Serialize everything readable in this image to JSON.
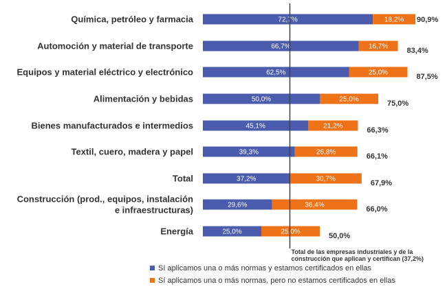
{
  "chart_data": {
    "type": "bar",
    "orientation": "horizontal",
    "stacked": true,
    "categories": [
      "Química, petróleo y farmacia",
      "Automoción y material de transporte",
      "Equipos y material eléctrico y electrónico",
      "Alimentación y bebidas",
      "Bienes manufacturados e intermedios",
      "Textil, cuero, madera y papel",
      "Total",
      "Construcción (prod., equipos, instalación e infraestructuras)",
      "Energía"
    ],
    "category_label_lines": [
      [
        "Química, petróleo y farmacia"
      ],
      [
        "Automoción y material de transporte"
      ],
      [
        "Equipos y material eléctrico y electrónico"
      ],
      [
        "Alimentación y bebidas"
      ],
      [
        "Bienes manufacturados e intermedios"
      ],
      [
        "Textil, cuero, madera y papel"
      ],
      [
        "Total"
      ],
      [
        "Construcción (prod., equipos, instalación",
        "e infraestructuras)"
      ],
      [
        "Energía"
      ]
    ],
    "series": [
      {
        "name": "Sí aplicamos una o más normas y estamos certificados en ellas",
        "color": "#4a5cab",
        "values": [
          72.7,
          66.7,
          62.5,
          50.0,
          45.1,
          39.3,
          37.2,
          29.6,
          25.0
        ],
        "labels": [
          "72,7%",
          "66,7%",
          "62,5%",
          "50,0%",
          "45,1%",
          "39,3%",
          "37,2%",
          "29,6%",
          "25,0%"
        ]
      },
      {
        "name": "Sí aplicamos una o más normas, pero no estamos certificados en ellas",
        "color": "#ee7217",
        "values": [
          18.2,
          16.7,
          25.0,
          25.0,
          21.2,
          26.8,
          30.7,
          36.4,
          25.0
        ],
        "labels": [
          "18,2%",
          "16,7%",
          "25,0%",
          "25,0%",
          "21,2%",
          "26,8%",
          "30,7%",
          "36,4%",
          "25,0%"
        ]
      }
    ],
    "totals": [
      "90,9%",
      "83,4%",
      "87,5%",
      "75,0%",
      "66,3%",
      "66,1%",
      "67,9%",
      "66,0%",
      "50,0%"
    ],
    "totals_values": [
      90.9,
      83.4,
      87.5,
      75.0,
      66.3,
      66.1,
      67.9,
      66.0,
      50.0
    ],
    "reference_line": {
      "value": 37.2,
      "label_lines": [
        "Total de las empresas industriales  y de la",
        "construcción  que aplican y certifican  (37,2%)"
      ]
    },
    "xlim": [
      0,
      100
    ],
    "grid": false,
    "legend_position": "bottom"
  }
}
